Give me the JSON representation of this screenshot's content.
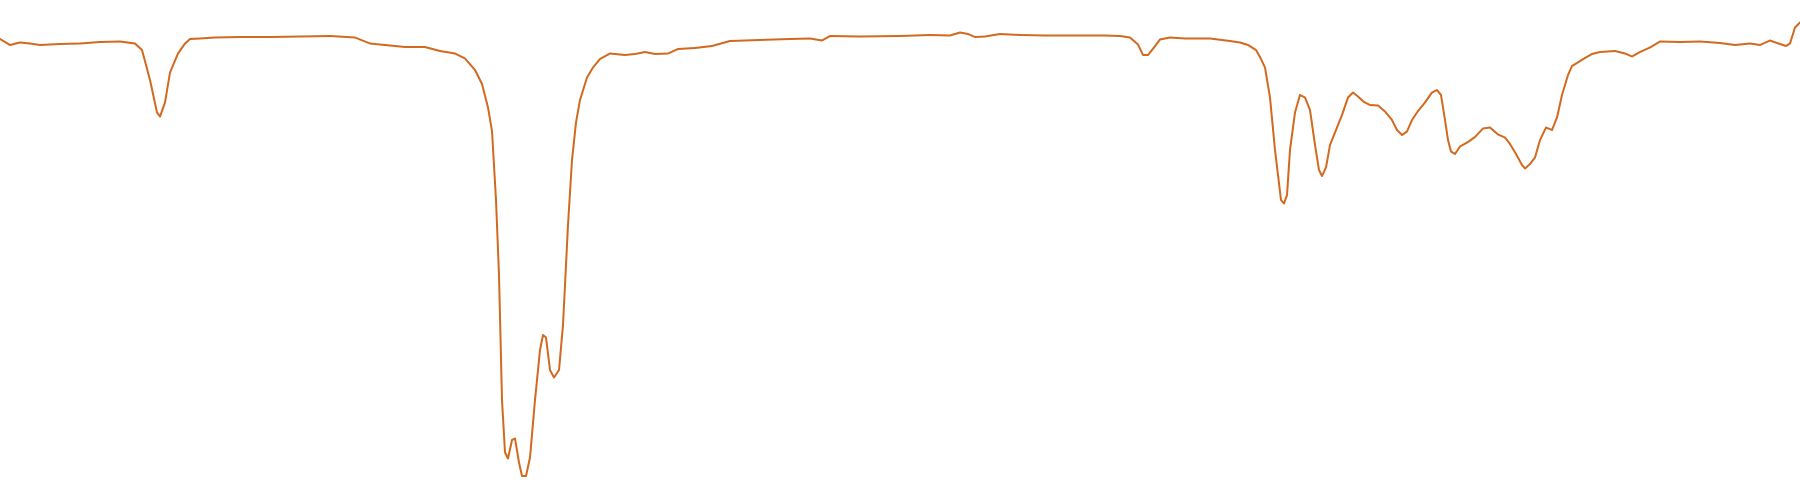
{
  "chart_data": {
    "type": "line",
    "title": "",
    "xlabel": "",
    "ylabel": "",
    "xlim": [
      0,
      1800
    ],
    "ylim": [
      0,
      100
    ],
    "grid": false,
    "legend": "none",
    "series": [
      {
        "color": "#d2691e",
        "points": [
          [
            0,
            92.2
          ],
          [
            10,
            91.0
          ],
          [
            20,
            91.5
          ],
          [
            30,
            91.3
          ],
          [
            40,
            91.0
          ],
          [
            60,
            91.2
          ],
          [
            80,
            91.3
          ],
          [
            100,
            91.6
          ],
          [
            120,
            91.7
          ],
          [
            135,
            91.3
          ],
          [
            142,
            90.0
          ],
          [
            150,
            84.0
          ],
          [
            157,
            77.5
          ],
          [
            160,
            76.7
          ],
          [
            165,
            79.5
          ],
          [
            170,
            85.5
          ],
          [
            178,
            89.3
          ],
          [
            185,
            91.3
          ],
          [
            190,
            92.2
          ],
          [
            200,
            92.3
          ],
          [
            215,
            92.5
          ],
          [
            240,
            92.6
          ],
          [
            270,
            92.6
          ],
          [
            300,
            92.7
          ],
          [
            330,
            92.8
          ],
          [
            355,
            92.5
          ],
          [
            370,
            91.3
          ],
          [
            385,
            91.0
          ],
          [
            405,
            90.6
          ],
          [
            425,
            90.6
          ],
          [
            440,
            89.8
          ],
          [
            455,
            89.3
          ],
          [
            465,
            88.3
          ],
          [
            475,
            86.0
          ],
          [
            482,
            83.2
          ],
          [
            488,
            78.5
          ],
          [
            492,
            73.8
          ],
          [
            496,
            60.0
          ],
          [
            499,
            45.0
          ],
          [
            502,
            20.0
          ],
          [
            505,
            9.5
          ],
          [
            508,
            8.3
          ],
          [
            512,
            12.0
          ],
          [
            515,
            12.3
          ],
          [
            519,
            7.5
          ],
          [
            522,
            4.8
          ],
          [
            526,
            4.8
          ],
          [
            530,
            8.5
          ],
          [
            535,
            20.0
          ],
          [
            540,
            30.0
          ],
          [
            543,
            33.0
          ],
          [
            546,
            32.5
          ],
          [
            550,
            26.0
          ],
          [
            554,
            24.5
          ],
          [
            559,
            26.0
          ],
          [
            563,
            35.0
          ],
          [
            568,
            55.0
          ],
          [
            572,
            68.0
          ],
          [
            576,
            75.5
          ],
          [
            580,
            80.0
          ],
          [
            587,
            84.5
          ],
          [
            593,
            86.5
          ],
          [
            600,
            88.2
          ],
          [
            610,
            89.3
          ],
          [
            625,
            89.0
          ],
          [
            635,
            89.2
          ],
          [
            645,
            89.6
          ],
          [
            655,
            89.2
          ],
          [
            668,
            89.3
          ],
          [
            678,
            90.2
          ],
          [
            695,
            90.4
          ],
          [
            712,
            90.8
          ],
          [
            730,
            91.8
          ],
          [
            760,
            92.0
          ],
          [
            790,
            92.2
          ],
          [
            810,
            92.3
          ],
          [
            822,
            91.9
          ],
          [
            830,
            92.8
          ],
          [
            860,
            92.7
          ],
          [
            900,
            92.8
          ],
          [
            930,
            93.0
          ],
          [
            950,
            92.9
          ],
          [
            960,
            93.5
          ],
          [
            968,
            93.2
          ],
          [
            975,
            92.6
          ],
          [
            985,
            92.7
          ],
          [
            1000,
            93.2
          ],
          [
            1020,
            93.0
          ],
          [
            1045,
            92.9
          ],
          [
            1065,
            92.9
          ],
          [
            1085,
            92.9
          ],
          [
            1105,
            92.9
          ],
          [
            1120,
            92.8
          ],
          [
            1130,
            92.5
          ],
          [
            1138,
            91.1
          ],
          [
            1143,
            89.0
          ],
          [
            1148,
            89.0
          ],
          [
            1154,
            90.5
          ],
          [
            1160,
            92.1
          ],
          [
            1170,
            92.5
          ],
          [
            1185,
            92.3
          ],
          [
            1210,
            92.3
          ],
          [
            1230,
            91.8
          ],
          [
            1240,
            91.5
          ],
          [
            1248,
            91.0
          ],
          [
            1256,
            90.0
          ],
          [
            1260,
            88.6
          ],
          [
            1265,
            86.5
          ],
          [
            1270,
            80.5
          ],
          [
            1275,
            70.0
          ],
          [
            1278,
            65.0
          ],
          [
            1281,
            60.0
          ],
          [
            1284,
            59.3
          ],
          [
            1287,
            61.0
          ],
          [
            1290,
            70.0
          ],
          [
            1295,
            77.5
          ],
          [
            1300,
            81.0
          ],
          [
            1305,
            80.5
          ],
          [
            1310,
            78.0
          ],
          [
            1315,
            71.0
          ],
          [
            1319,
            66.0
          ],
          [
            1322,
            64.8
          ],
          [
            1326,
            66.5
          ],
          [
            1330,
            71.0
          ],
          [
            1336,
            74.0
          ],
          [
            1342,
            77.0
          ],
          [
            1348,
            80.5
          ],
          [
            1353,
            81.5
          ],
          [
            1358,
            80.7
          ],
          [
            1364,
            79.6
          ],
          [
            1370,
            79.0
          ],
          [
            1378,
            78.9
          ],
          [
            1385,
            77.7
          ],
          [
            1392,
            76.0
          ],
          [
            1397,
            74.0
          ],
          [
            1402,
            73.0
          ],
          [
            1407,
            73.7
          ],
          [
            1412,
            76.0
          ],
          [
            1418,
            77.8
          ],
          [
            1425,
            79.5
          ],
          [
            1432,
            81.5
          ],
          [
            1437,
            82.0
          ],
          [
            1441,
            81.0
          ],
          [
            1445,
            76.0
          ],
          [
            1448,
            72.0
          ],
          [
            1451,
            69.7
          ],
          [
            1455,
            69.2
          ],
          [
            1460,
            70.7
          ],
          [
            1468,
            71.6
          ],
          [
            1475,
            72.6
          ],
          [
            1483,
            74.3
          ],
          [
            1490,
            74.5
          ],
          [
            1498,
            73.1
          ],
          [
            1505,
            72.5
          ],
          [
            1510,
            71.2
          ],
          [
            1516,
            69.2
          ],
          [
            1522,
            67.0
          ],
          [
            1525,
            66.3
          ],
          [
            1530,
            67.2
          ],
          [
            1535,
            68.5
          ],
          [
            1540,
            72.0
          ],
          [
            1546,
            74.5
          ],
          [
            1552,
            74.0
          ],
          [
            1557,
            76.5
          ],
          [
            1562,
            81.0
          ],
          [
            1568,
            85.0
          ],
          [
            1572,
            86.8
          ],
          [
            1577,
            87.4
          ],
          [
            1585,
            88.4
          ],
          [
            1592,
            89.2
          ],
          [
            1600,
            89.6
          ],
          [
            1615,
            89.8
          ],
          [
            1625,
            89.3
          ],
          [
            1632,
            88.7
          ],
          [
            1640,
            89.6
          ],
          [
            1650,
            90.5
          ],
          [
            1660,
            91.7
          ],
          [
            1680,
            91.6
          ],
          [
            1700,
            91.7
          ],
          [
            1720,
            91.4
          ],
          [
            1735,
            91.0
          ],
          [
            1750,
            91.3
          ],
          [
            1760,
            91.0
          ],
          [
            1770,
            91.9
          ],
          [
            1780,
            91.2
          ],
          [
            1786,
            90.8
          ],
          [
            1790,
            91.3
          ],
          [
            1795,
            94.5
          ],
          [
            1800,
            95.5
          ]
        ]
      }
    ]
  }
}
